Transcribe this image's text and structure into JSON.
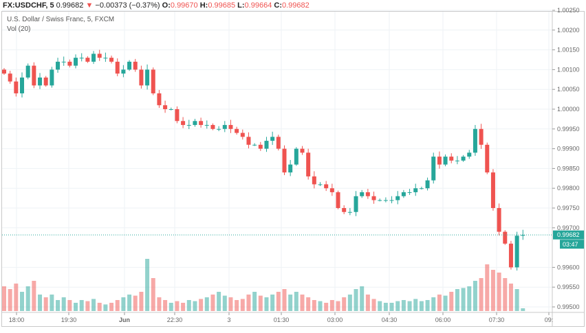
{
  "header": {
    "symbol": "FX:USDCHF, 5",
    "price": "0.99682",
    "direction": "▼",
    "change": "−0.00373 (−0.37%)",
    "o_label": "O:",
    "o": "0.99670",
    "h_label": "H:",
    "h": "0.99685",
    "l_label": "L:",
    "l": "0.99664",
    "c_label": "C:",
    "c": "0.99682"
  },
  "legend": {
    "title": "U.S. Dollar / Swiss Franc, 5, FXCM",
    "volume": "Vol (20)"
  },
  "price_label": "0.99682",
  "countdown": "03:47",
  "colors": {
    "up": "#26a69a",
    "down": "#ef5350",
    "grid": "#eef2f6"
  },
  "chart_data": {
    "type": "candlestick",
    "interval_minutes": 10,
    "price_ticks": [
      "1.00250",
      "1.00200",
      "1.00150",
      "1.00100",
      "1.00050",
      "1.00000",
      "0.99950",
      "0.99900",
      "0.99850",
      "0.99800",
      "0.99750",
      "0.99700",
      "0.99600",
      "0.99550",
      "0.99500"
    ],
    "ylim": [
      0.99485,
      1.00255
    ],
    "time_ticks": [
      "18:00",
      "19:30",
      "Jun",
      "22:30",
      "3",
      "01:30",
      "03:00",
      "04:30",
      "06:00",
      "07:30",
      "09:"
    ],
    "open_first": 1.001,
    "close": [
      1.0009,
      1.0007,
      1.0004,
      1.0008,
      1.0011,
      1.0006,
      1.0008,
      1.0006,
      1.001,
      1.0012,
      1.0012,
      1.0011,
      1.0013,
      1.0013,
      1.0012,
      1.0014,
      1.0013,
      1.0013,
      1.0012,
      1.0009,
      1.001,
      1.0012,
      1.001,
      1.0006,
      1.001,
      1.0004,
      1.0001,
      1.0,
      1.0,
      0.9997,
      0.9996,
      0.9996,
      0.9997,
      0.9996,
      0.9996,
      0.9995,
      0.9995,
      0.9996,
      0.9995,
      0.9994,
      0.9993,
      0.9991,
      0.9991,
      0.999,
      0.9992,
      0.9993,
      0.999,
      0.9984,
      0.9986,
      0.999,
      0.9989,
      0.9983,
      0.9981,
      0.9981,
      0.998,
      0.9979,
      0.9975,
      0.9974,
      0.9974,
      0.9978,
      0.9979,
      0.9978,
      0.9977,
      0.9977,
      0.9977,
      0.9977,
      0.9978,
      0.9979,
      0.9979,
      0.998,
      0.998,
      0.9982,
      0.9988,
      0.9986,
      0.9988,
      0.9987,
      0.9987,
      0.9988,
      0.9989,
      0.9995,
      0.9991,
      0.9984,
      0.9975,
      0.9969,
      0.9966,
      0.996,
      0.9968,
      0.99682
    ],
    "volume": [
      45,
      40,
      50,
      35,
      45,
      55,
      30,
      25,
      30,
      20,
      25,
      20,
      15,
      20,
      18,
      22,
      15,
      12,
      15,
      20,
      25,
      30,
      28,
      35,
      95,
      60,
      25,
      20,
      15,
      18,
      15,
      20,
      18,
      22,
      25,
      30,
      35,
      28,
      25,
      20,
      22,
      30,
      35,
      28,
      25,
      30,
      35,
      40,
      30,
      35,
      30,
      25,
      20,
      18,
      15,
      20,
      18,
      25,
      30,
      40,
      45,
      30,
      22,
      18,
      15,
      15,
      18,
      20,
      18,
      22,
      18,
      20,
      25,
      30,
      28,
      35,
      40,
      42,
      45,
      55,
      60,
      85,
      75,
      70,
      60,
      50,
      40,
      5
    ],
    "volume_max": 100
  }
}
